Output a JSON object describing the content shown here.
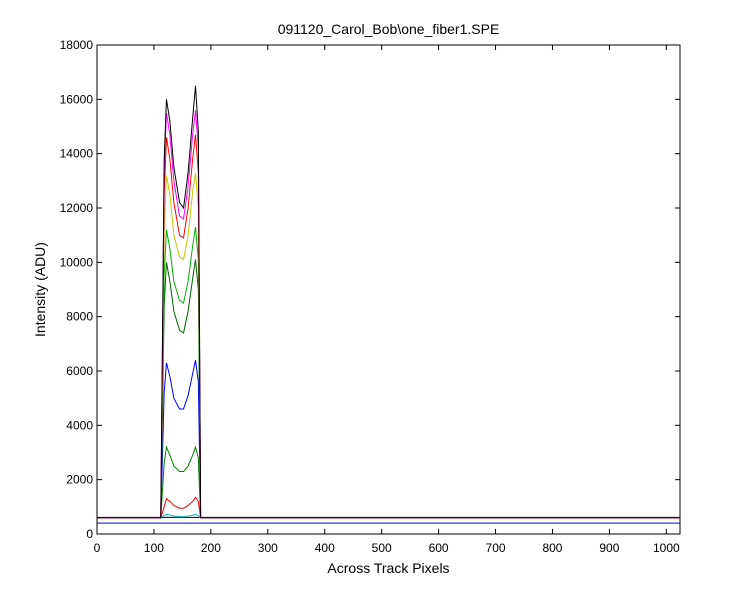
{
  "chart_data": {
    "type": "line",
    "title": "091120_Carol_Bob\\one_fiber1.SPE",
    "xlabel": "Across Track Pixels",
    "ylabel": "Intensity (ADU)",
    "xlim": [
      0,
      1024
    ],
    "ylim": [
      0,
      18000
    ],
    "xticks": [
      0,
      100,
      200,
      300,
      400,
      500,
      600,
      700,
      800,
      900,
      1000
    ],
    "yticks": [
      0,
      2000,
      4000,
      6000,
      8000,
      10000,
      12000,
      14000,
      16000,
      18000
    ],
    "grid": false,
    "legend": "none",
    "profile_x": [
      0,
      112,
      118,
      122,
      128,
      135,
      145,
      152,
      160,
      168,
      173,
      178,
      182,
      188,
      1024
    ],
    "series": [
      {
        "color": "#0000ff",
        "values": [
          400,
          400,
          400,
          400,
          400,
          400,
          400,
          400,
          400,
          400,
          400,
          400,
          400,
          400,
          400
        ]
      },
      {
        "color": "#000000",
        "values": [
          610,
          610,
          610,
          610,
          610,
          610,
          610,
          610,
          610,
          610,
          610,
          610,
          610,
          610,
          610
        ]
      },
      {
        "color": "#00bfbf",
        "values": [
          600,
          600,
          680,
          720,
          700,
          660,
          640,
          640,
          660,
          690,
          720,
          680,
          600,
          600,
          600
        ]
      },
      {
        "color": "#ff0000",
        "values": [
          600,
          600,
          1000,
          1300,
          1200,
          1050,
          950,
          950,
          1050,
          1200,
          1350,
          1200,
          600,
          600,
          600
        ]
      },
      {
        "color": "#008000",
        "values": [
          600,
          600,
          2600,
          3200,
          2900,
          2500,
          2300,
          2300,
          2500,
          2900,
          3200,
          2800,
          600,
          600,
          600
        ]
      },
      {
        "color": "#0000ff",
        "values": [
          600,
          600,
          5200,
          6300,
          5800,
          5000,
          4600,
          4600,
          5100,
          5900,
          6400,
          5600,
          600,
          600,
          600
        ]
      },
      {
        "color": "#006400",
        "values": [
          600,
          600,
          8400,
          10000,
          9300,
          8200,
          7500,
          7400,
          8200,
          9400,
          10100,
          9000,
          600,
          600,
          600
        ]
      },
      {
        "color": "#00b000",
        "values": [
          600,
          600,
          9500,
          11200,
          10500,
          9300,
          8600,
          8500,
          9300,
          10600,
          11300,
          10100,
          600,
          600,
          600
        ]
      },
      {
        "color": "#c8c800",
        "values": [
          600,
          600,
          11200,
          13200,
          12500,
          11000,
          10200,
          10100,
          11000,
          12600,
          13300,
          12000,
          600,
          600,
          600
        ]
      },
      {
        "color": "#ff0000",
        "values": [
          600,
          600,
          12500,
          14600,
          13800,
          12200,
          11000,
          10900,
          12000,
          13800,
          14700,
          13300,
          600,
          600,
          600
        ]
      },
      {
        "color": "#ff00ff",
        "values": [
          600,
          600,
          13300,
          15500,
          14700,
          13000,
          11700,
          11600,
          12800,
          14700,
          15600,
          14200,
          600,
          600,
          600
        ]
      },
      {
        "color": "#000000",
        "values": [
          600,
          600,
          13800,
          16000,
          15200,
          13500,
          12200,
          12000,
          13300,
          15300,
          16500,
          14800,
          600,
          600,
          600
        ]
      }
    ]
  }
}
